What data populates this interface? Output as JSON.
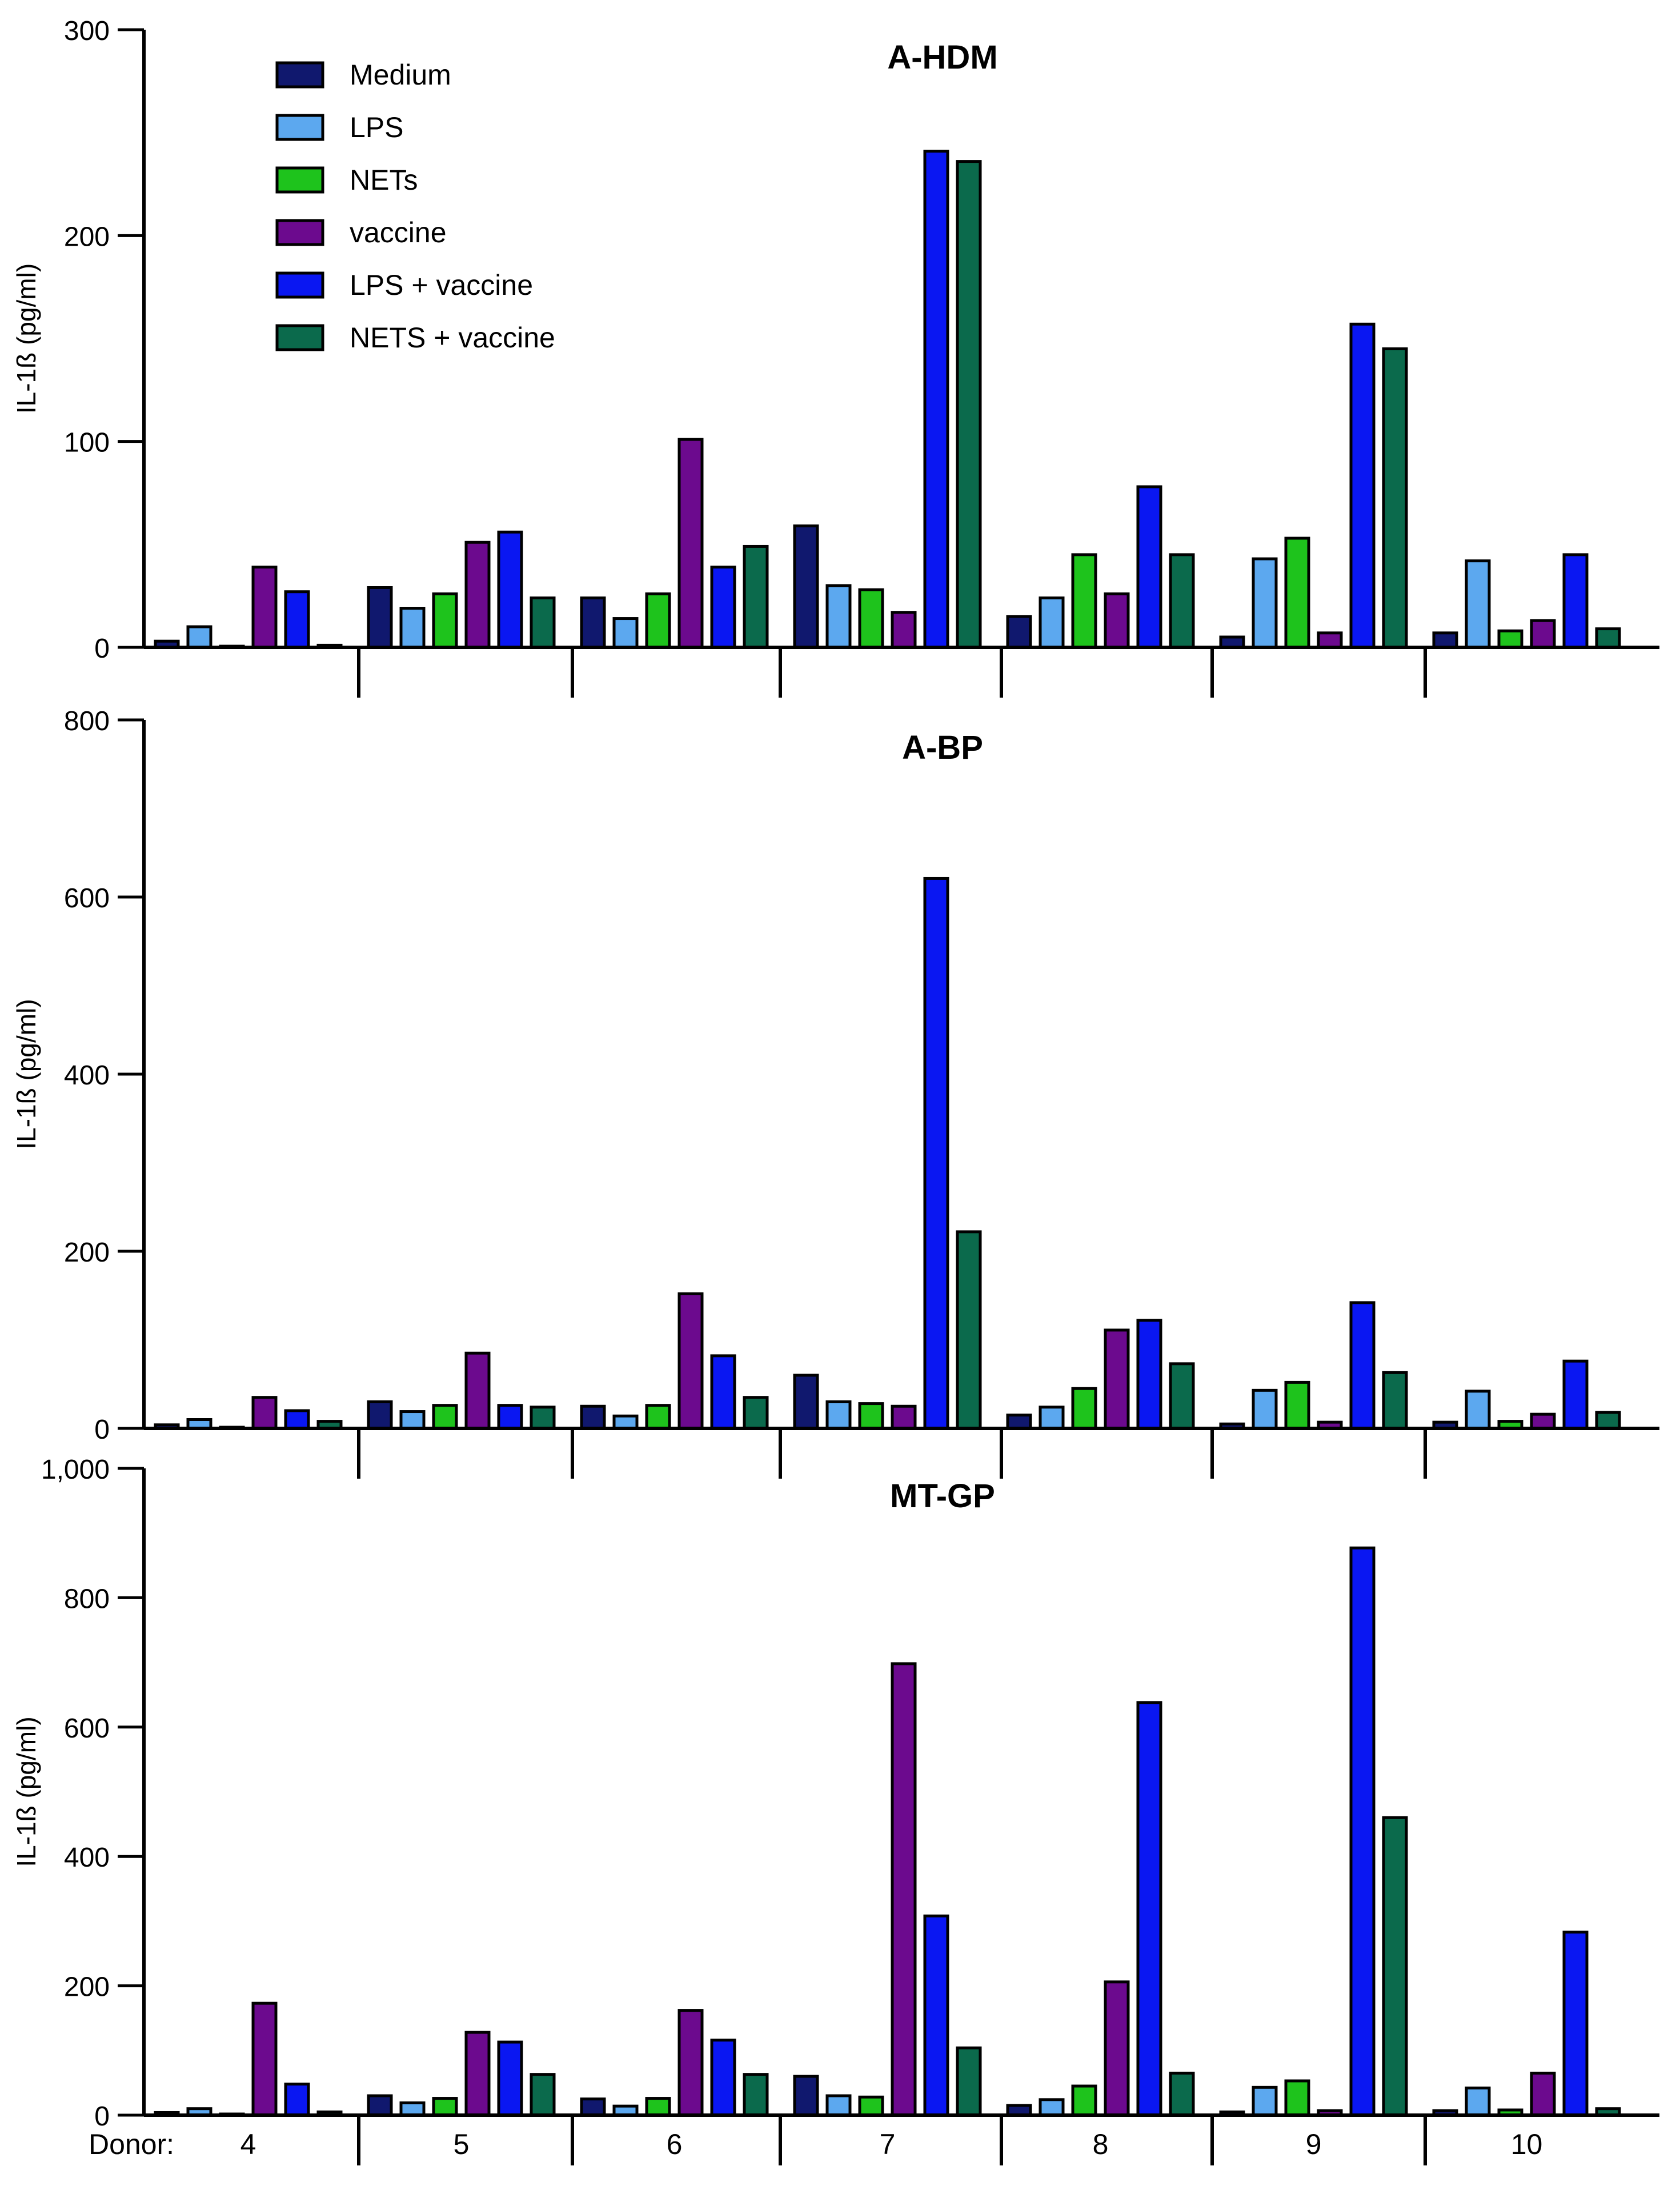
{
  "chart_data": [
    {
      "type": "bar",
      "title": "A-HDM",
      "ylabel": "IL-1ß (pg/ml)",
      "xlabel": "Donor:",
      "ylim": [
        0,
        300
      ],
      "yticks": [
        "0",
        "100",
        "200",
        "300"
      ],
      "categories": [
        "4",
        "5",
        "6",
        "7",
        "8",
        "9",
        "10"
      ],
      "series": [
        {
          "name": "Medium",
          "values": [
            3,
            29,
            24,
            59,
            15,
            5,
            7
          ]
        },
        {
          "name": "LPS",
          "values": [
            10,
            19,
            14,
            30,
            24,
            43,
            42
          ]
        },
        {
          "name": "NETs",
          "values": [
            0,
            26,
            26,
            28,
            45,
            53,
            8
          ]
        },
        {
          "name": "vaccine",
          "values": [
            39,
            51,
            101,
            17,
            26,
            7,
            13
          ]
        },
        {
          "name": "LPS +  vaccine",
          "values": [
            27,
            56,
            39,
            241,
            78,
            157,
            45
          ]
        },
        {
          "name": "NETS + vaccine",
          "values": [
            1,
            24,
            49,
            236,
            45,
            145,
            9
          ]
        }
      ]
    },
    {
      "type": "bar",
      "title": "A-BP",
      "ylabel": "IL-1ß (pg/ml)",
      "xlabel": "Donor:",
      "ylim": [
        0,
        800
      ],
      "yticks": [
        "0",
        "200",
        "400",
        "600",
        "800"
      ],
      "categories": [
        "4",
        "5",
        "6",
        "7",
        "8",
        "9",
        "10"
      ],
      "series": [
        {
          "name": "Medium",
          "values": [
            4,
            30,
            25,
            60,
            15,
            5,
            7
          ]
        },
        {
          "name": "LPS",
          "values": [
            10,
            19,
            14,
            30,
            24,
            43,
            42
          ]
        },
        {
          "name": "NETs",
          "values": [
            0,
            26,
            26,
            28,
            45,
            52,
            8
          ]
        },
        {
          "name": "vaccine",
          "values": [
            35,
            85,
            152,
            25,
            111,
            7,
            16
          ]
        },
        {
          "name": "LPS +  vaccine",
          "values": [
            20,
            26,
            82,
            621,
            122,
            142,
            76
          ]
        },
        {
          "name": "NETS + vaccine",
          "values": [
            8,
            24,
            35,
            222,
            73,
            63,
            18
          ]
        }
      ]
    },
    {
      "type": "bar",
      "title": "MT-GP",
      "ylabel": "IL-1ß (pg/ml)",
      "xlabel": "Donor:",
      "ylim": [
        0,
        1000
      ],
      "yticks": [
        "0",
        "200",
        "400",
        "600",
        "800",
        "1,000"
      ],
      "categories": [
        "4",
        "5",
        "6",
        "7",
        "8",
        "9",
        "10"
      ],
      "series": [
        {
          "name": "Medium",
          "values": [
            4,
            30,
            25,
            60,
            15,
            5,
            7
          ]
        },
        {
          "name": "LPS",
          "values": [
            10,
            19,
            14,
            30,
            24,
            43,
            42
          ]
        },
        {
          "name": "NETs",
          "values": [
            0,
            26,
            26,
            28,
            45,
            53,
            8
          ]
        },
        {
          "name": "vaccine",
          "values": [
            173,
            128,
            162,
            698,
            206,
            7,
            65
          ]
        },
        {
          "name": "LPS +  vaccine",
          "values": [
            48,
            113,
            116,
            308,
            638,
            877,
            283
          ]
        },
        {
          "name": "NETS + vaccine",
          "values": [
            5,
            63,
            63,
            104,
            65,
            460,
            10
          ]
        }
      ]
    }
  ],
  "colors": [
    "#10186e",
    "#5ca8ef",
    "#1ec31c",
    "#6c0a8e",
    "#0a17f2",
    "#0b6a4c"
  ],
  "legend": [
    "Medium",
    "LPS",
    "NETs",
    "vaccine",
    "LPS +  vaccine",
    "NETS + vaccine"
  ]
}
